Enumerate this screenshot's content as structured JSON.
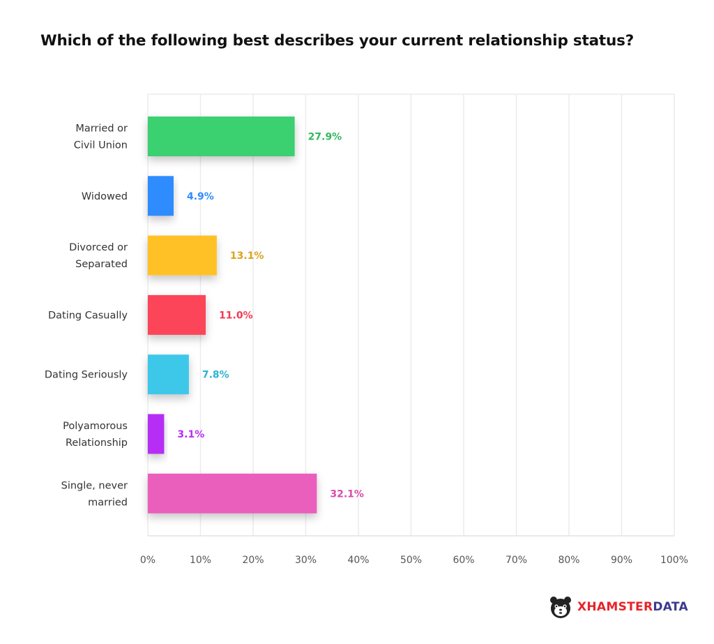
{
  "title": "Which of the following best describes your current relationship status?",
  "chart_data": {
    "type": "bar",
    "orientation": "horizontal",
    "categories": [
      [
        "Married or",
        "Civil Union"
      ],
      [
        "Widowed"
      ],
      [
        "Divorced or",
        "Separated"
      ],
      [
        "Dating Casually"
      ],
      [
        "Dating Seriously"
      ],
      [
        "Polyamorous",
        "Relationship"
      ],
      [
        "Single, never",
        "married"
      ]
    ],
    "values": [
      27.9,
      4.9,
      13.1,
      11.0,
      7.8,
      3.1,
      32.1
    ],
    "value_labels": [
      "27.9%",
      "4.9%",
      "13.1%",
      "11.0%",
      "7.8%",
      "3.1%",
      "32.1%"
    ],
    "colors": [
      "#3ad06f",
      "#2f8cff",
      "#ffc125",
      "#fc4559",
      "#3ec8ea",
      "#b62df5",
      "#ea5fbc"
    ],
    "label_colors": [
      "#33b85f",
      "#2f8cff",
      "#d9a31a",
      "#f23b50",
      "#2bb3d4",
      "#b62df5",
      "#d94aa8"
    ],
    "xlim": [
      0,
      100
    ],
    "xticks": [
      0,
      10,
      20,
      30,
      40,
      50,
      60,
      70,
      80,
      90,
      100
    ],
    "xtick_labels": [
      "0%",
      "10%",
      "20%",
      "30%",
      "40%",
      "50%",
      "60%",
      "70%",
      "80%",
      "90%",
      "100%"
    ],
    "grid": true,
    "xlabel": "",
    "ylabel": ""
  },
  "logo": {
    "part_a": "XHAMSTER",
    "part_b": "DATA",
    "icon": "hamster-face-icon"
  }
}
